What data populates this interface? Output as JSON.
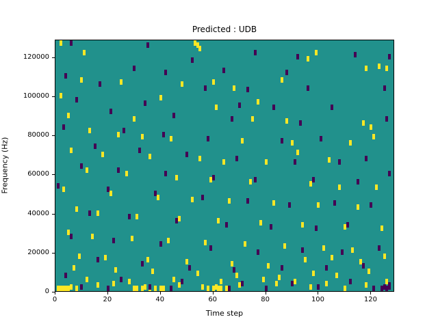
{
  "title": "Predicted : UDB",
  "axes": {
    "xlabel": "Time step",
    "ylabel": "Frequency (Hz)",
    "x_ticks": [
      0,
      20,
      40,
      60,
      80,
      100,
      120
    ],
    "y_ticks": [
      0,
      20000,
      40000,
      60000,
      80000,
      100000,
      120000
    ],
    "x_max": 129,
    "y_max": 129000
  },
  "chart_data": {
    "type": "heatmap",
    "title": "Predicted : UDB",
    "xlabel": "Time step",
    "ylabel": "Frequency (Hz)",
    "xlim": [
      0,
      129
    ],
    "ylim": [
      0,
      129000
    ],
    "grid": false,
    "legend": "none",
    "colors": {
      "background": "#21918c",
      "high": "#fde725",
      "low": "#440154"
    },
    "value_meaning": {
      "background": "mid value (teal)",
      "high": "high value cell (yellow)",
      "low": "low value cell (dark purple)"
    },
    "units": "points are [time_step, frequency_kHz]",
    "high_points": [
      [
        1,
        1
      ],
      [
        2,
        1
      ],
      [
        3,
        1
      ],
      [
        4,
        1
      ],
      [
        5,
        1
      ],
      [
        6,
        2
      ],
      [
        8,
        1
      ],
      [
        30,
        1
      ],
      [
        31,
        1
      ],
      [
        33,
        1
      ],
      [
        34,
        2
      ],
      [
        36,
        1
      ],
      [
        38,
        1
      ],
      [
        40,
        1
      ],
      [
        41,
        1
      ],
      [
        56,
        2
      ],
      [
        58,
        1
      ],
      [
        60,
        1
      ],
      [
        61,
        2
      ],
      [
        62,
        1
      ],
      [
        63,
        1
      ],
      [
        65,
        1
      ],
      [
        97,
        2
      ],
      [
        110,
        1
      ],
      [
        16,
        3
      ],
      [
        22,
        4
      ],
      [
        47,
        3
      ],
      [
        70,
        3
      ],
      [
        84,
        4
      ],
      [
        118,
        3
      ],
      [
        2,
        127
      ],
      [
        11,
        122
      ],
      [
        53,
        127
      ],
      [
        54,
        126
      ],
      [
        55,
        124
      ],
      [
        99,
        122
      ],
      [
        96,
        119
      ],
      [
        123,
        115
      ],
      [
        126,
        114
      ],
      [
        118,
        114
      ],
      [
        10,
        108
      ],
      [
        25,
        107
      ],
      [
        48,
        106
      ],
      [
        60,
        107
      ],
      [
        68,
        104
      ],
      [
        86,
        108
      ],
      [
        2,
        100
      ],
      [
        40,
        99
      ],
      [
        77,
        97
      ],
      [
        61,
        94
      ],
      [
        5,
        90
      ],
      [
        30,
        88
      ],
      [
        75,
        88
      ],
      [
        88,
        87
      ],
      [
        117,
        86
      ],
      [
        120,
        84
      ],
      [
        13,
        82
      ],
      [
        24,
        80
      ],
      [
        33,
        79
      ],
      [
        44,
        78
      ],
      [
        71,
        77
      ],
      [
        90,
        76
      ],
      [
        112,
        76
      ],
      [
        121,
        79
      ],
      [
        6,
        72
      ],
      [
        18,
        70
      ],
      [
        36,
        69
      ],
      [
        55,
        68
      ],
      [
        64,
        66
      ],
      [
        80,
        66
      ],
      [
        92,
        71
      ],
      [
        104,
        67
      ],
      [
        12,
        62
      ],
      [
        27,
        60
      ],
      [
        46,
        58
      ],
      [
        59,
        57
      ],
      [
        74,
        56
      ],
      [
        97,
        55
      ],
      [
        108,
        53
      ],
      [
        122,
        53
      ],
      [
        3,
        52
      ],
      [
        21,
        50
      ],
      [
        39,
        48
      ],
      [
        52,
        47
      ],
      [
        66,
        46
      ],
      [
        83,
        45
      ],
      [
        100,
        44
      ],
      [
        115,
        43
      ],
      [
        8,
        42
      ],
      [
        16,
        40
      ],
      [
        31,
        38
      ],
      [
        47,
        37
      ],
      [
        62,
        36
      ],
      [
        78,
        35
      ],
      [
        94,
        34
      ],
      [
        110,
        33
      ],
      [
        124,
        32
      ],
      [
        5,
        30
      ],
      [
        14,
        28
      ],
      [
        29,
        27
      ],
      [
        43,
        26
      ],
      [
        57,
        25
      ],
      [
        72,
        24
      ],
      [
        87,
        23
      ],
      [
        102,
        22
      ],
      [
        113,
        21
      ],
      [
        9,
        18
      ],
      [
        19,
        17
      ],
      [
        35,
        16
      ],
      [
        50,
        15
      ],
      [
        67,
        14
      ],
      [
        81,
        13
      ],
      [
        95,
        16
      ],
      [
        105,
        17
      ],
      [
        116,
        15
      ],
      [
        125,
        18
      ],
      [
        7,
        12
      ],
      [
        23,
        11
      ],
      [
        37,
        10
      ],
      [
        54,
        9
      ],
      [
        69,
        8
      ],
      [
        85,
        7
      ],
      [
        98,
        9
      ],
      [
        107,
        8
      ],
      [
        119,
        10
      ],
      [
        12,
        6
      ],
      [
        28,
        5
      ],
      [
        45,
        6
      ],
      [
        63,
        5
      ],
      [
        79,
        6
      ],
      [
        91,
        5
      ],
      [
        103,
        4
      ],
      [
        126,
        5
      ]
    ],
    "low_points": [
      [
        6,
        127
      ],
      [
        35,
        126
      ],
      [
        76,
        122
      ],
      [
        92,
        120
      ],
      [
        114,
        121
      ],
      [
        52,
        118
      ],
      [
        30,
        114
      ],
      [
        42,
        112
      ],
      [
        64,
        113
      ],
      [
        88,
        112
      ],
      [
        4,
        110
      ],
      [
        17,
        106
      ],
      [
        57,
        104
      ],
      [
        73,
        103
      ],
      [
        96,
        104
      ],
      [
        125,
        104
      ],
      [
        8,
        98
      ],
      [
        34,
        96
      ],
      [
        70,
        95
      ],
      [
        83,
        94
      ],
      [
        105,
        94
      ],
      [
        21,
        92
      ],
      [
        45,
        90
      ],
      [
        67,
        88
      ],
      [
        93,
        86
      ],
      [
        126,
        88
      ],
      [
        3,
        84
      ],
      [
        26,
        82
      ],
      [
        41,
        80
      ],
      [
        58,
        78
      ],
      [
        86,
        77
      ],
      [
        101,
        78
      ],
      [
        15,
        74
      ],
      [
        32,
        72
      ],
      [
        50,
        70
      ],
      [
        69,
        68
      ],
      [
        91,
        66
      ],
      [
        108,
        66
      ],
      [
        118,
        68
      ],
      [
        10,
        64
      ],
      [
        24,
        62
      ],
      [
        42,
        60
      ],
      [
        60,
        58
      ],
      [
        76,
        57
      ],
      [
        98,
        57
      ],
      [
        115,
        56
      ],
      [
        1,
        54
      ],
      [
        20,
        52
      ],
      [
        38,
        50
      ],
      [
        56,
        48
      ],
      [
        73,
        46
      ],
      [
        89,
        44
      ],
      [
        106,
        45
      ],
      [
        120,
        44
      ],
      [
        13,
        40
      ],
      [
        28,
        38
      ],
      [
        46,
        36
      ],
      [
        65,
        34
      ],
      [
        82,
        33
      ],
      [
        99,
        32
      ],
      [
        111,
        34
      ],
      [
        6,
        28
      ],
      [
        22,
        26
      ],
      [
        40,
        24
      ],
      [
        59,
        22
      ],
      [
        77,
        20
      ],
      [
        94,
        21
      ],
      [
        109,
        20
      ],
      [
        123,
        22
      ],
      [
        16,
        16
      ],
      [
        33,
        14
      ],
      [
        51,
        12
      ],
      [
        68,
        11
      ],
      [
        86,
        12
      ],
      [
        103,
        12
      ],
      [
        117,
        13
      ],
      [
        4,
        8
      ],
      [
        25,
        6
      ],
      [
        48,
        5
      ],
      [
        71,
        4
      ],
      [
        90,
        4
      ],
      [
        112,
        5
      ],
      [
        127,
        3
      ],
      [
        10,
        2
      ],
      [
        20,
        1
      ],
      [
        36,
        2
      ],
      [
        44,
        1
      ],
      [
        66,
        1
      ],
      [
        80,
        1
      ],
      [
        100,
        2
      ],
      [
        121,
        1
      ],
      [
        124,
        1
      ],
      [
        125,
        2
      ],
      [
        126,
        1
      ],
      [
        127,
        2
      ],
      [
        127,
        120
      ],
      [
        127,
        60
      ]
    ]
  }
}
